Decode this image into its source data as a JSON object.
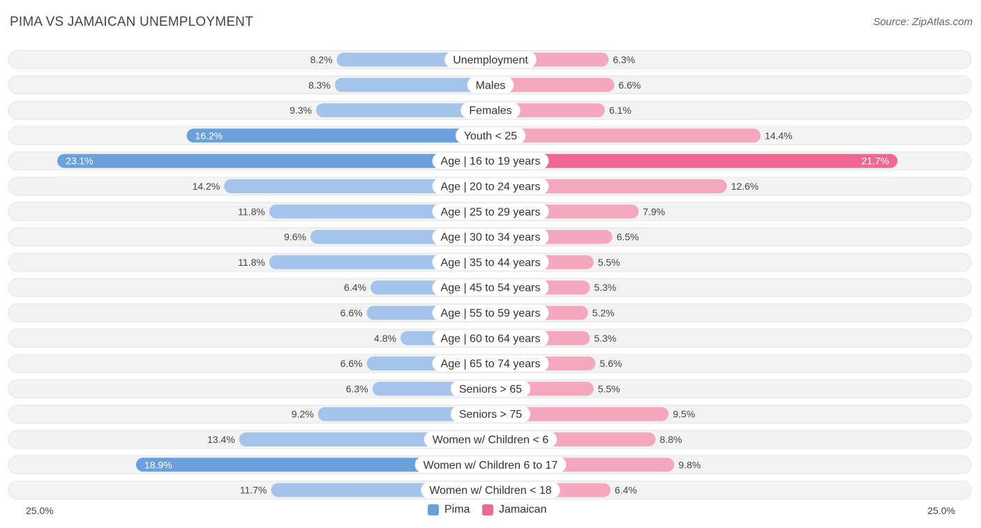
{
  "header": {
    "title": "PIMA VS JAMAICAN UNEMPLOYMENT",
    "source": "Source: ZipAtlas.com"
  },
  "legend": {
    "left_label": "Pima",
    "right_label": "Jamaican"
  },
  "axis": {
    "left_label": "25.0%",
    "right_label": "25.0%"
  },
  "colors": {
    "pima_light": "#a4c4ea",
    "pima_strong": "#6aa0dc",
    "jamaican_light": "#f4a8c0",
    "jamaican_strong": "#f06892",
    "row_bg": "#efefef"
  },
  "chart_data": {
    "type": "bar",
    "orientation": "diverging-horizontal",
    "title": "PIMA VS JAMAICAN UNEMPLOYMENT",
    "xlim": [
      0,
      25.0
    ],
    "categories": [
      "Unemployment",
      "Males",
      "Females",
      "Youth < 25",
      "Age | 16 to 19 years",
      "Age | 20 to 24 years",
      "Age | 25 to 29 years",
      "Age | 30 to 34 years",
      "Age | 35 to 44 years",
      "Age | 45 to 54 years",
      "Age | 55 to 59 years",
      "Age | 60 to 64 years",
      "Age | 65 to 74 years",
      "Seniors > 65",
      "Seniors > 75",
      "Women w/ Children < 6",
      "Women w/ Children 6 to 17",
      "Women w/ Children < 18"
    ],
    "series": [
      {
        "name": "Pima",
        "values": [
          8.2,
          8.3,
          9.3,
          16.2,
          23.1,
          14.2,
          11.8,
          9.6,
          11.8,
          6.4,
          6.6,
          4.8,
          6.6,
          6.3,
          9.2,
          13.4,
          18.9,
          11.7
        ],
        "labels": [
          "8.2%",
          "8.3%",
          "9.3%",
          "16.2%",
          "23.1%",
          "14.2%",
          "11.8%",
          "9.6%",
          "11.8%",
          "6.4%",
          "6.6%",
          "4.8%",
          "6.6%",
          "6.3%",
          "9.2%",
          "13.4%",
          "18.9%",
          "11.7%"
        ]
      },
      {
        "name": "Jamaican",
        "values": [
          6.3,
          6.6,
          6.1,
          14.4,
          21.7,
          12.6,
          7.9,
          6.5,
          5.5,
          5.3,
          5.2,
          5.3,
          5.6,
          5.5,
          9.5,
          8.8,
          9.8,
          6.4
        ],
        "labels": [
          "6.3%",
          "6.6%",
          "6.1%",
          "14.4%",
          "21.7%",
          "12.6%",
          "7.9%",
          "6.5%",
          "5.5%",
          "5.3%",
          "5.2%",
          "5.3%",
          "5.6%",
          "5.5%",
          "9.5%",
          "8.8%",
          "9.8%",
          "6.4%"
        ]
      }
    ],
    "legend_position": "bottom-center"
  }
}
